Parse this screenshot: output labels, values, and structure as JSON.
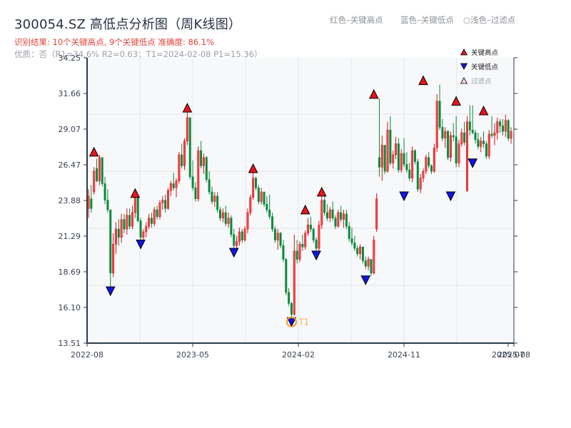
{
  "header": {
    "title": "300054.SZ 高低点分析图（周K线图）",
    "result_line": "识别结果: 10个关键高点, 9个关键低点   准确度: 86.1%",
    "quality_line": "优质：否（R1=34.6%   R2=0.63；T1=2024-02-08 P1=15.36）",
    "hint_high": "红色–关键高点",
    "hint_low": "蓝色–关键低点",
    "hint_filtered": "○浅色–过滤点"
  },
  "legend": {
    "items": [
      {
        "label": "关键高点",
        "color": "#e8141c",
        "shape": "triangle-up"
      },
      {
        "label": "关键低点",
        "color": "#1414e0",
        "shape": "triangle-down"
      },
      {
        "label": "过滤点",
        "color": "#f4c8c8",
        "shape": "triangle-up-light"
      }
    ]
  },
  "colors": {
    "up": "#d9141c",
    "down": "#0a8a3a",
    "high_marker": "#e8141c",
    "low_marker": "#1414e0",
    "t1_ring": "#f39c1f",
    "plot_bg": "#f7f8fa",
    "grid": "#e2e4e8",
    "axis": "#2e3a4a"
  },
  "chart_data": {
    "type": "candlestick",
    "title": "300054.SZ 高低点分析图（周K线图）",
    "xlabel": "",
    "ylabel": "",
    "ylim": [
      13.51,
      34.25
    ],
    "yticks": [
      "34.25",
      "31.66",
      "29.07",
      "26.47",
      "23.88",
      "21.29",
      "18.69",
      "16.10",
      "13.51"
    ],
    "xticks": [
      "2022-08",
      "2023-05",
      "2024-02",
      "2024-11",
      "2025-07",
      "2025-08"
    ],
    "grid": true,
    "legend_position": "upper right",
    "candles": [
      [
        23.3,
        24.7,
        22.6,
        24.2
      ],
      [
        24.0,
        25.0,
        23.0,
        23.3
      ],
      [
        24.5,
        26.3,
        24.3,
        26.0
      ],
      [
        26.2,
        26.9,
        25.2,
        25.3
      ],
      [
        25.3,
        27.2,
        25.0,
        27.0
      ],
      [
        27.0,
        27.0,
        24.9,
        25.1
      ],
      [
        25.1,
        25.6,
        23.6,
        23.9
      ],
      [
        23.9,
        24.7,
        23.0,
        23.2
      ],
      [
        23.2,
        23.2,
        17.6,
        18.6
      ],
      [
        18.6,
        21.5,
        18.3,
        20.7
      ],
      [
        20.7,
        22.3,
        20.0,
        21.8
      ],
      [
        21.8,
        22.5,
        20.6,
        21.2
      ],
      [
        21.2,
        22.9,
        20.8,
        22.5
      ],
      [
        22.5,
        22.9,
        21.5,
        21.8
      ],
      [
        21.8,
        23.3,
        21.4,
        22.8
      ],
      [
        22.8,
        23.3,
        21.8,
        22.0
      ],
      [
        22.0,
        23.5,
        21.8,
        23.0
      ],
      [
        23.0,
        24.4,
        22.6,
        24.1
      ],
      [
        24.1,
        24.1,
        22.3,
        22.4
      ],
      [
        22.4,
        22.6,
        21.0,
        21.2
      ],
      [
        21.2,
        21.8,
        20.7,
        21.6
      ],
      [
        21.6,
        22.3,
        21.2,
        22.0
      ],
      [
        22.0,
        22.9,
        21.8,
        22.6
      ],
      [
        22.6,
        23.0,
        21.9,
        22.2
      ],
      [
        22.2,
        23.4,
        22.0,
        23.2
      ],
      [
        23.2,
        23.5,
        22.5,
        22.7
      ],
      [
        22.7,
        23.9,
        22.5,
        23.7
      ],
      [
        23.7,
        24.2,
        23.2,
        23.9
      ],
      [
        23.9,
        24.3,
        23.0,
        23.3
      ],
      [
        23.3,
        24.8,
        23.2,
        24.6
      ],
      [
        24.6,
        25.3,
        24.2,
        25.1
      ],
      [
        25.1,
        25.9,
        24.6,
        24.8
      ],
      [
        24.8,
        25.5,
        24.1,
        25.3
      ],
      [
        25.3,
        27.4,
        25.1,
        27.2
      ],
      [
        27.2,
        28.0,
        26.2,
        26.4
      ],
      [
        26.4,
        28.4,
        26.1,
        28.2
      ],
      [
        28.2,
        30.3,
        27.9,
        29.9
      ],
      [
        29.9,
        29.9,
        25.4,
        25.6
      ],
      [
        25.6,
        26.8,
        24.6,
        24.8
      ],
      [
        24.8,
        25.2,
        23.8,
        24.0
      ],
      [
        24.0,
        27.8,
        23.8,
        27.5
      ],
      [
        27.5,
        28.2,
        26.2,
        26.4
      ],
      [
        26.4,
        27.3,
        25.8,
        27.0
      ],
      [
        27.0,
        27.1,
        25.2,
        25.4
      ],
      [
        25.4,
        26.0,
        24.3,
        24.5
      ],
      [
        24.5,
        24.9,
        23.6,
        23.8
      ],
      [
        23.8,
        24.5,
        23.4,
        24.2
      ],
      [
        24.2,
        24.5,
        23.0,
        23.2
      ],
      [
        23.2,
        23.4,
        22.4,
        22.6
      ],
      [
        22.6,
        23.3,
        22.3,
        23.0
      ],
      [
        23.0,
        23.5,
        22.0,
        22.2
      ],
      [
        22.2,
        23.0,
        21.9,
        22.6
      ],
      [
        22.6,
        22.8,
        21.2,
        21.4
      ],
      [
        21.4,
        21.8,
        20.4,
        20.6
      ],
      [
        20.6,
        21.3,
        20.2,
        20.9
      ],
      [
        20.9,
        21.9,
        20.6,
        21.6
      ],
      [
        21.6,
        21.8,
        20.8,
        21.0
      ],
      [
        21.0,
        22.0,
        20.9,
        21.8
      ],
      [
        21.8,
        23.3,
        21.5,
        23.0
      ],
      [
        23.0,
        24.3,
        22.8,
        24.1
      ],
      [
        24.1,
        25.9,
        23.9,
        25.5
      ],
      [
        25.5,
        25.6,
        24.6,
        24.8
      ],
      [
        24.8,
        25.0,
        23.6,
        23.8
      ],
      [
        23.8,
        24.8,
        23.6,
        24.5
      ],
      [
        24.5,
        24.5,
        23.4,
        23.6
      ],
      [
        23.6,
        24.2,
        23.0,
        23.2
      ],
      [
        23.2,
        24.3,
        22.5,
        22.7
      ],
      [
        22.7,
        23.0,
        21.6,
        21.8
      ],
      [
        21.8,
        22.0,
        20.8,
        21.0
      ],
      [
        21.0,
        21.8,
        20.3,
        21.5
      ],
      [
        21.5,
        21.6,
        20.4,
        20.6
      ],
      [
        20.6,
        21.0,
        19.4,
        19.6
      ],
      [
        19.6,
        19.7,
        17.0,
        17.2
      ],
      [
        17.2,
        17.5,
        16.2,
        16.4
      ],
      [
        16.4,
        16.5,
        15.36,
        15.6
      ],
      [
        15.6,
        21.4,
        15.5,
        20.2
      ],
      [
        20.2,
        21.0,
        19.3,
        19.6
      ],
      [
        19.6,
        20.9,
        19.4,
        20.7
      ],
      [
        20.7,
        21.4,
        20.2,
        20.5
      ],
      [
        20.5,
        21.7,
        20.3,
        21.5
      ],
      [
        21.5,
        22.6,
        21.3,
        22.1
      ],
      [
        22.1,
        22.7,
        21.6,
        21.8
      ],
      [
        21.8,
        21.9,
        20.8,
        21.0
      ],
      [
        21.0,
        21.2,
        20.2,
        20.4
      ],
      [
        20.4,
        22.4,
        20.2,
        22.1
      ],
      [
        22.1,
        24.2,
        21.8,
        23.9
      ],
      [
        23.9,
        24.2,
        22.8,
        23.0
      ],
      [
        23.0,
        23.6,
        22.4,
        22.6
      ],
      [
        22.6,
        23.4,
        22.3,
        23.2
      ],
      [
        23.2,
        23.8,
        22.4,
        22.6
      ],
      [
        22.6,
        22.8,
        21.8,
        22.0
      ],
      [
        22.0,
        23.2,
        21.9,
        23.0
      ],
      [
        23.0,
        23.5,
        22.3,
        22.5
      ],
      [
        22.5,
        23.2,
        21.9,
        22.9
      ],
      [
        22.9,
        23.2,
        21.8,
        22.0
      ],
      [
        22.0,
        22.3,
        20.9,
        21.1
      ],
      [
        21.1,
        21.9,
        20.6,
        20.8
      ],
      [
        20.8,
        21.3,
        20.2,
        20.4
      ],
      [
        20.4,
        20.6,
        19.8,
        20.0
      ],
      [
        20.0,
        20.7,
        19.6,
        20.5
      ],
      [
        20.5,
        20.5,
        19.3,
        19.5
      ],
      [
        19.5,
        19.8,
        18.9,
        19.1
      ],
      [
        19.1,
        19.8,
        18.8,
        19.6
      ],
      [
        19.6,
        19.6,
        18.4,
        18.6
      ],
      [
        18.6,
        21.3,
        18.5,
        21.0
      ],
      [
        21.8,
        24.4,
        21.6,
        24.0
      ],
      [
        27.0,
        31.3,
        25.6,
        26.3
      ],
      [
        26.3,
        28.6,
        25.3,
        27.9
      ],
      [
        27.9,
        27.9,
        25.8,
        26.0
      ],
      [
        26.0,
        29.6,
        25.9,
        29.0
      ],
      [
        29.0,
        30.0,
        26.4,
        26.6
      ],
      [
        26.6,
        27.5,
        26.2,
        27.2
      ],
      [
        27.2,
        28.5,
        26.9,
        28.0
      ],
      [
        28.0,
        28.4,
        25.9,
        26.1
      ],
      [
        26.1,
        27.6,
        25.9,
        27.3
      ],
      [
        27.3,
        28.4,
        26.3,
        26.5
      ],
      [
        26.5,
        27.4,
        25.9,
        26.1
      ],
      [
        26.1,
        26.6,
        25.3,
        25.5
      ],
      [
        25.5,
        27.8,
        25.2,
        27.5
      ],
      [
        27.5,
        27.6,
        26.5,
        26.7
      ],
      [
        26.7,
        26.9,
        24.5,
        24.7
      ],
      [
        24.7,
        25.8,
        24.4,
        25.5
      ],
      [
        25.5,
        26.2,
        25.2,
        26.0
      ],
      [
        26.0,
        27.2,
        25.8,
        27.0
      ],
      [
        27.0,
        27.4,
        26.2,
        26.4
      ],
      [
        26.4,
        26.5,
        25.8,
        26.0
      ],
      [
        26.0,
        28.0,
        25.9,
        27.7
      ],
      [
        27.7,
        31.6,
        27.4,
        31.1
      ],
      [
        31.1,
        32.3,
        29.0,
        29.2
      ],
      [
        29.2,
        29.8,
        28.2,
        28.4
      ],
      [
        28.4,
        29.2,
        27.7,
        28.9
      ],
      [
        28.9,
        29.0,
        26.8,
        27.0
      ],
      [
        27.0,
        28.9,
        26.7,
        28.6
      ],
      [
        28.6,
        29.5,
        28.2,
        28.5
      ],
      [
        28.5,
        30.0,
        26.3,
        26.6
      ],
      [
        26.6,
        28.3,
        26.3,
        28.0
      ],
      [
        28.0,
        29.1,
        27.8,
        28.8
      ],
      [
        28.8,
        29.6,
        27.9,
        28.1
      ],
      [
        24.6,
        30.0,
        24.5,
        29.6
      ],
      [
        29.6,
        30.8,
        28.6,
        29.0
      ],
      [
        29.0,
        30.8,
        28.7,
        28.8
      ],
      [
        28.8,
        29.0,
        28.0,
        28.3
      ],
      [
        28.3,
        28.8,
        27.6,
        27.8
      ],
      [
        27.8,
        28.5,
        27.4,
        28.2
      ],
      [
        28.2,
        28.9,
        27.7,
        28.0
      ],
      [
        28.0,
        28.2,
        26.9,
        27.1
      ],
      [
        27.1,
        29.0,
        26.9,
        28.7
      ],
      [
        28.7,
        30.0,
        28.4,
        28.6
      ],
      [
        28.6,
        29.5,
        27.9,
        28.8
      ],
      [
        28.8,
        29.9,
        28.3,
        29.6
      ],
      [
        29.6,
        29.8,
        28.8,
        29.3
      ],
      [
        29.3,
        29.8,
        28.6,
        28.9
      ],
      [
        28.9,
        30.1,
        28.5,
        29.7
      ],
      [
        29.7,
        29.8,
        28.2,
        28.4
      ],
      [
        28.4,
        29.2,
        28.0,
        28.9
      ]
    ],
    "key_highs": [
      {
        "index": 2,
        "price": 27.1
      },
      {
        "index": 17,
        "price": 24.1
      },
      {
        "index": 36,
        "price": 30.3
      },
      {
        "index": 60,
        "price": 25.9
      },
      {
        "index": 85,
        "price": 24.2
      },
      {
        "index": 104,
        "price": 31.3
      },
      {
        "index": 122,
        "price": 32.3
      },
      {
        "index": 134,
        "price": 30.8
      },
      {
        "index": 144,
        "price": 30.1
      },
      {
        "index": 79,
        "price": 22.9
      }
    ],
    "key_lows": [
      {
        "index": 8,
        "price": 17.6
      },
      {
        "index": 19,
        "price": 21.0
      },
      {
        "index": 53,
        "price": 20.4
      },
      {
        "index": 74,
        "price": 15.36
      },
      {
        "index": 83,
        "price": 20.2
      },
      {
        "index": 101,
        "price": 18.4
      },
      {
        "index": 115,
        "price": 24.5
      },
      {
        "index": 132,
        "price": 24.5
      },
      {
        "index": 140,
        "price": 26.9
      }
    ],
    "annotations": [
      {
        "label": "T1",
        "index": 74,
        "price": 15.36,
        "date": "2024-02-08"
      }
    ],
    "metrics": {
      "key_high_count": 10,
      "key_low_count": 9,
      "accuracy": "86.1%",
      "R1": "34.6%",
      "R2": 0.63,
      "T1": "2024-02-08",
      "P1": 15.36,
      "quality": "否"
    }
  }
}
